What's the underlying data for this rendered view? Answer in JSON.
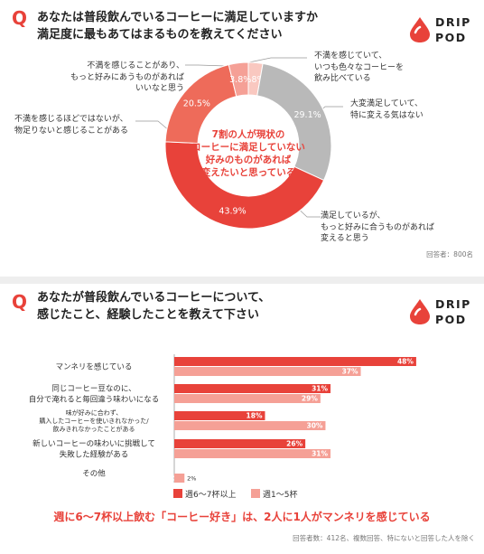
{
  "logo": {
    "line1": "DRIP",
    "line2": "POD"
  },
  "q_mark": "Q",
  "colors": {
    "accent": "#e8423a",
    "light": "#f5a096",
    "grey": "#b9b9b9",
    "pale": "#f9c8c0"
  },
  "panel1": {
    "title_line1": "あなたは普段飲んでいるコーヒーに満足していますか",
    "title_line2": "満足度に最もあてはまるものを教えてください",
    "center_line1": "7割の人が現状の",
    "center_line2": "コーヒーに満足していない",
    "center_line3": "好みのものがあれば",
    "center_line4": "変えたいと思っている",
    "respondents": "回答者：800名",
    "callouts": {
      "c1": [
        "不満を感じていて、",
        "いつも色々なコーヒーを",
        "飲み比べている"
      ],
      "c2": [
        "大変満足していて、",
        "特に変える気はない"
      ],
      "c3": [
        "満足しているが、",
        "もっと好みに合うものがあれば",
        "変えると思う"
      ],
      "c4": [
        "不満を感じるほどではないが、",
        "物足りないと感じることがある"
      ],
      "c5": [
        "不満を感じることがあり、",
        "もっと好みにあうものがあれば",
        "いいなと思う"
      ]
    }
  },
  "panel2": {
    "title_line1": "あなたが普段飲んでいるコーヒーについて、",
    "title_line2": "感じたこと、経験したことを教えて下さい",
    "legend": [
      "週6〜7杯以上",
      "週1〜5杯"
    ],
    "headline": "週に6〜7杯以上飲む「コーヒー好き」は、2人に1人がマンネリを感じている",
    "respondents": "回答者数：412名、複数回答、特にないと回答した人を除く"
  },
  "chart_data": [
    {
      "type": "pie",
      "title": "あなたは普段飲んでいるコーヒーに満足していますか",
      "categories": [
        "不満を感じていて、いつも色々なコーヒーを飲み比べている",
        "大変満足していて、特に変える気はない",
        "満足しているが、もっと好みに合うものがあれば変えると思う",
        "不満を感じるほどではないが、物足りないと感じることがある",
        "不満を感じることがあり、もっと好みにあうものがあればいいなと思う"
      ],
      "values": [
        2.8,
        29.1,
        43.9,
        20.5,
        3.8
      ],
      "labels": [
        "2.8%",
        "29.1%",
        "43.9%",
        "20.5%",
        "3.8%"
      ],
      "colors": [
        "#f9c8c0",
        "#b9b9b9",
        "#e8423a",
        "#ee6b5a",
        "#f5a096"
      ]
    },
    {
      "type": "bar",
      "title": "あなたが普段飲んでいるコーヒーについて、感じたこと、経験したことを教えて下さい",
      "categories": [
        [
          "マンネリを感じている"
        ],
        [
          "同じコーヒー豆なのに、",
          "自分で淹れると毎回違う味わいになる"
        ],
        [
          "味が好みに合わず、",
          "購入したコーヒーを使いきれなかった/",
          "飲みきれなかったことがある"
        ],
        [
          "新しいコーヒーの味わいに挑戦して",
          "失敗した経験がある"
        ],
        [
          "その他"
        ]
      ],
      "series": [
        {
          "name": "週6〜7杯以上",
          "values": [
            48,
            31,
            18,
            26,
            0
          ],
          "labels": [
            "48%",
            "31%",
            "18%",
            "26%",
            ""
          ],
          "color": "#e8423a"
        },
        {
          "name": "週1〜5杯",
          "values": [
            37,
            29,
            30,
            31,
            2
          ],
          "labels": [
            "37%",
            "29%",
            "30%",
            "31%",
            "2%"
          ],
          "color": "#f5a096"
        }
      ],
      "xlim": [
        0,
        55
      ]
    }
  ]
}
